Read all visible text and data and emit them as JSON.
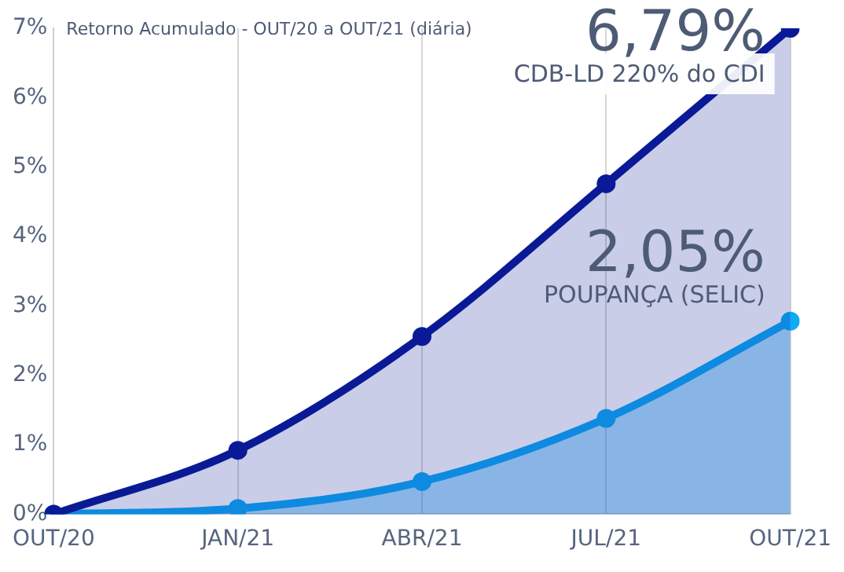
{
  "chart_data": {
    "type": "area",
    "title": "Retorno Acumulado - OUT/20 a OUT/21 (diária)",
    "categories": [
      "OUT/20",
      "JAN/21",
      "ABR/21",
      "JUL/21",
      "OUT/21"
    ],
    "series": [
      {
        "name": "CDB-LD 220% do CDI",
        "color": "#0a1a96",
        "values": [
          0,
          0.92,
          2.56,
          4.76,
          7.0
        ]
      },
      {
        "name": "POUPANÇA (SELIC)",
        "color": "#10aaf5",
        "values": [
          0,
          0.08,
          0.47,
          1.38,
          2.78
        ]
      }
    ],
    "annotations": [
      "6,79%",
      "2,05%"
    ],
    "ylim": [
      0,
      7
    ],
    "yticks": [
      {
        "value": 0,
        "label": "0%"
      },
      {
        "value": 1,
        "label": "1%"
      },
      {
        "value": 2,
        "label": "2%"
      },
      {
        "value": 3,
        "label": "3%"
      },
      {
        "value": 4,
        "label": "4%"
      },
      {
        "value": 5,
        "label": "5%"
      },
      {
        "value": 6,
        "label": "6%"
      },
      {
        "value": 7,
        "label": "7%"
      }
    ],
    "grid": "x",
    "marker": "circle",
    "legend": false
  }
}
